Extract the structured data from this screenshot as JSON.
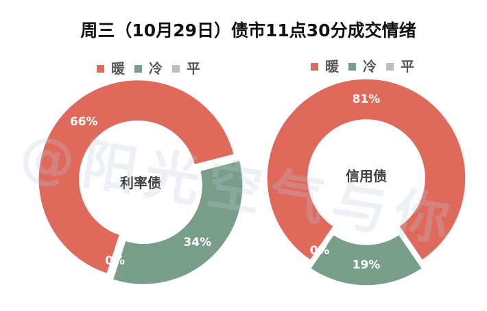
{
  "title": "周三（10月29日）债市11点30分成交情绪",
  "watermark": "@阳光空气与你",
  "chart_data": [
    {
      "type": "pie",
      "variant": "donut",
      "exploded": true,
      "center_label": "利率债",
      "categories": [
        "暖",
        "冷",
        "平"
      ],
      "values": [
        66,
        34,
        0
      ],
      "data_labels": [
        "66%",
        "34%",
        "0%"
      ],
      "colors": [
        "#DF6A5B",
        "#789E89",
        "#BFBFBF"
      ],
      "legend_position": "top"
    },
    {
      "type": "pie",
      "variant": "donut",
      "exploded": true,
      "center_label": "信用债",
      "categories": [
        "暖",
        "冷",
        "平"
      ],
      "values": [
        81,
        19,
        0
      ],
      "data_labels": [
        "81%",
        "19%",
        "0%"
      ],
      "colors": [
        "#DF6A5B",
        "#789E89",
        "#BFBFBF"
      ],
      "legend_position": "top"
    }
  ]
}
